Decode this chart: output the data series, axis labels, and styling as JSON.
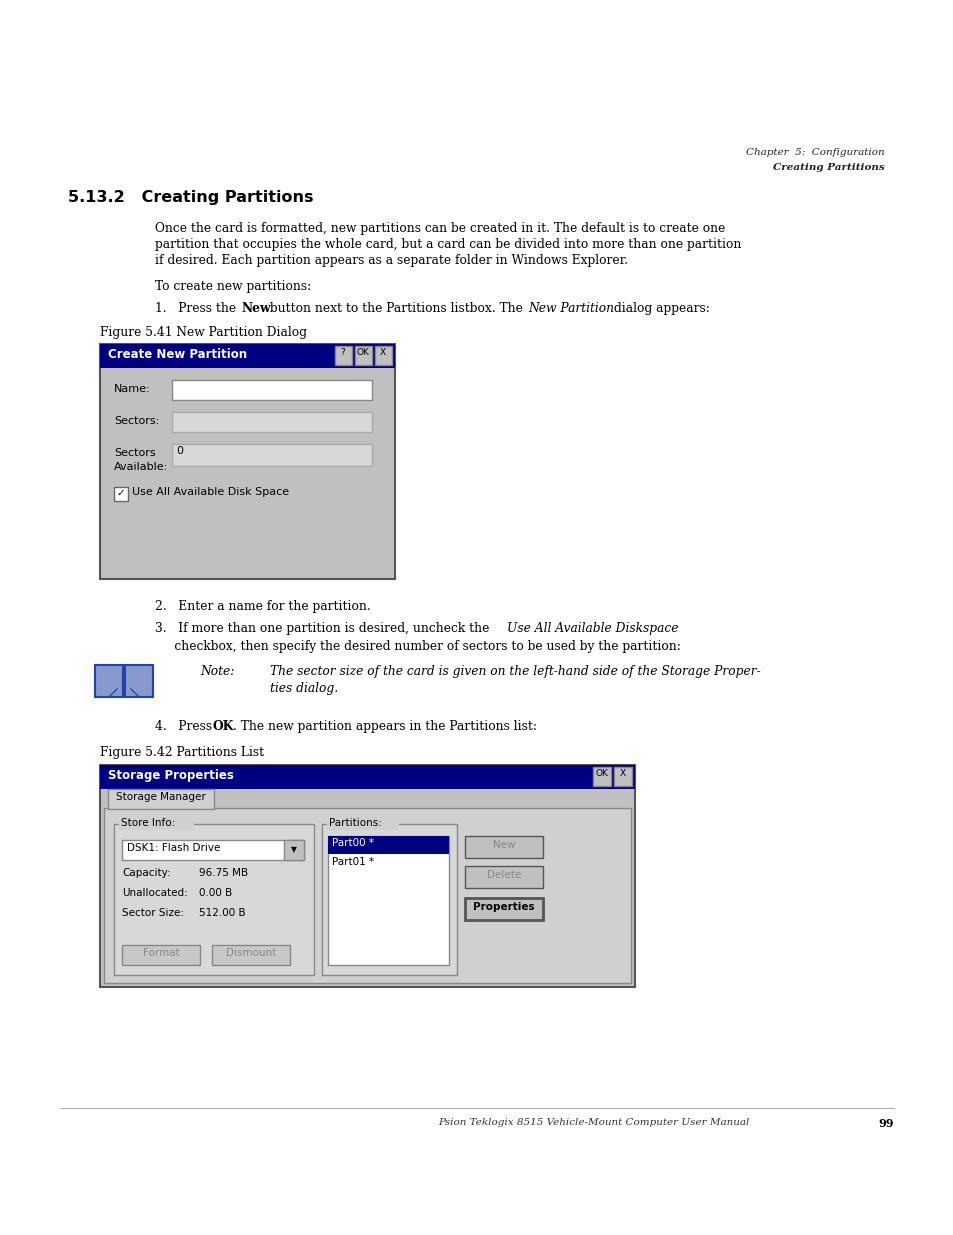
{
  "bg_color": "#ffffff",
  "page_width": 9.54,
  "page_height": 12.35,
  "header_right_line1": "Chapter  5:  Configuration",
  "header_right_line2": "Creating Partitions",
  "section_title": "5.13.2   Creating Partitions",
  "para1_line1": "Once the card is formatted, new partitions can be created in it. The default is to create one",
  "para1_line2": "partition that occupies the whole card, but a card can be divided into more than one partition",
  "para1_line3": "if desired. Each partition appears as a separate folder in Windows Explorer.",
  "para2": "To create new partitions:",
  "step1_pre": "1.   Press the ",
  "step1_bold": "New",
  "step1_mid": " button next to the Partitions listbox. The ",
  "step1_italic": "New Partition",
  "step1_post": " dialog appears:",
  "fig1_caption": "Figure 5.41 New Partition Dialog",
  "step2": "2.   Enter a name for the partition.",
  "step3_pre": "3.   If more than one partition is desired, uncheck the ",
  "step3_italic": "Use All Available Diskspace",
  "step3_post": "     checkbox, then specify the desired number of sectors to be used by the partition:",
  "note_label": "Note:",
  "note_text_line1": "The sector size of the card is given on the left-hand side of the Storage Proper-",
  "note_text_line2": "ties dialog.",
  "step4_pre": "4.   Press ",
  "step4_bold": "OK",
  "step4_post": ". The new partition appears in the Partitions list:",
  "fig2_caption": "Figure 5.42 Partitions List",
  "footer_text": "Psion Teklogix 8515 Vehicle-Mount Computer User Manual",
  "footer_page": "99",
  "dialog_bg": "#c0c0c0",
  "titlebar_color": "#000080",
  "selected_item_bg": "#000080"
}
